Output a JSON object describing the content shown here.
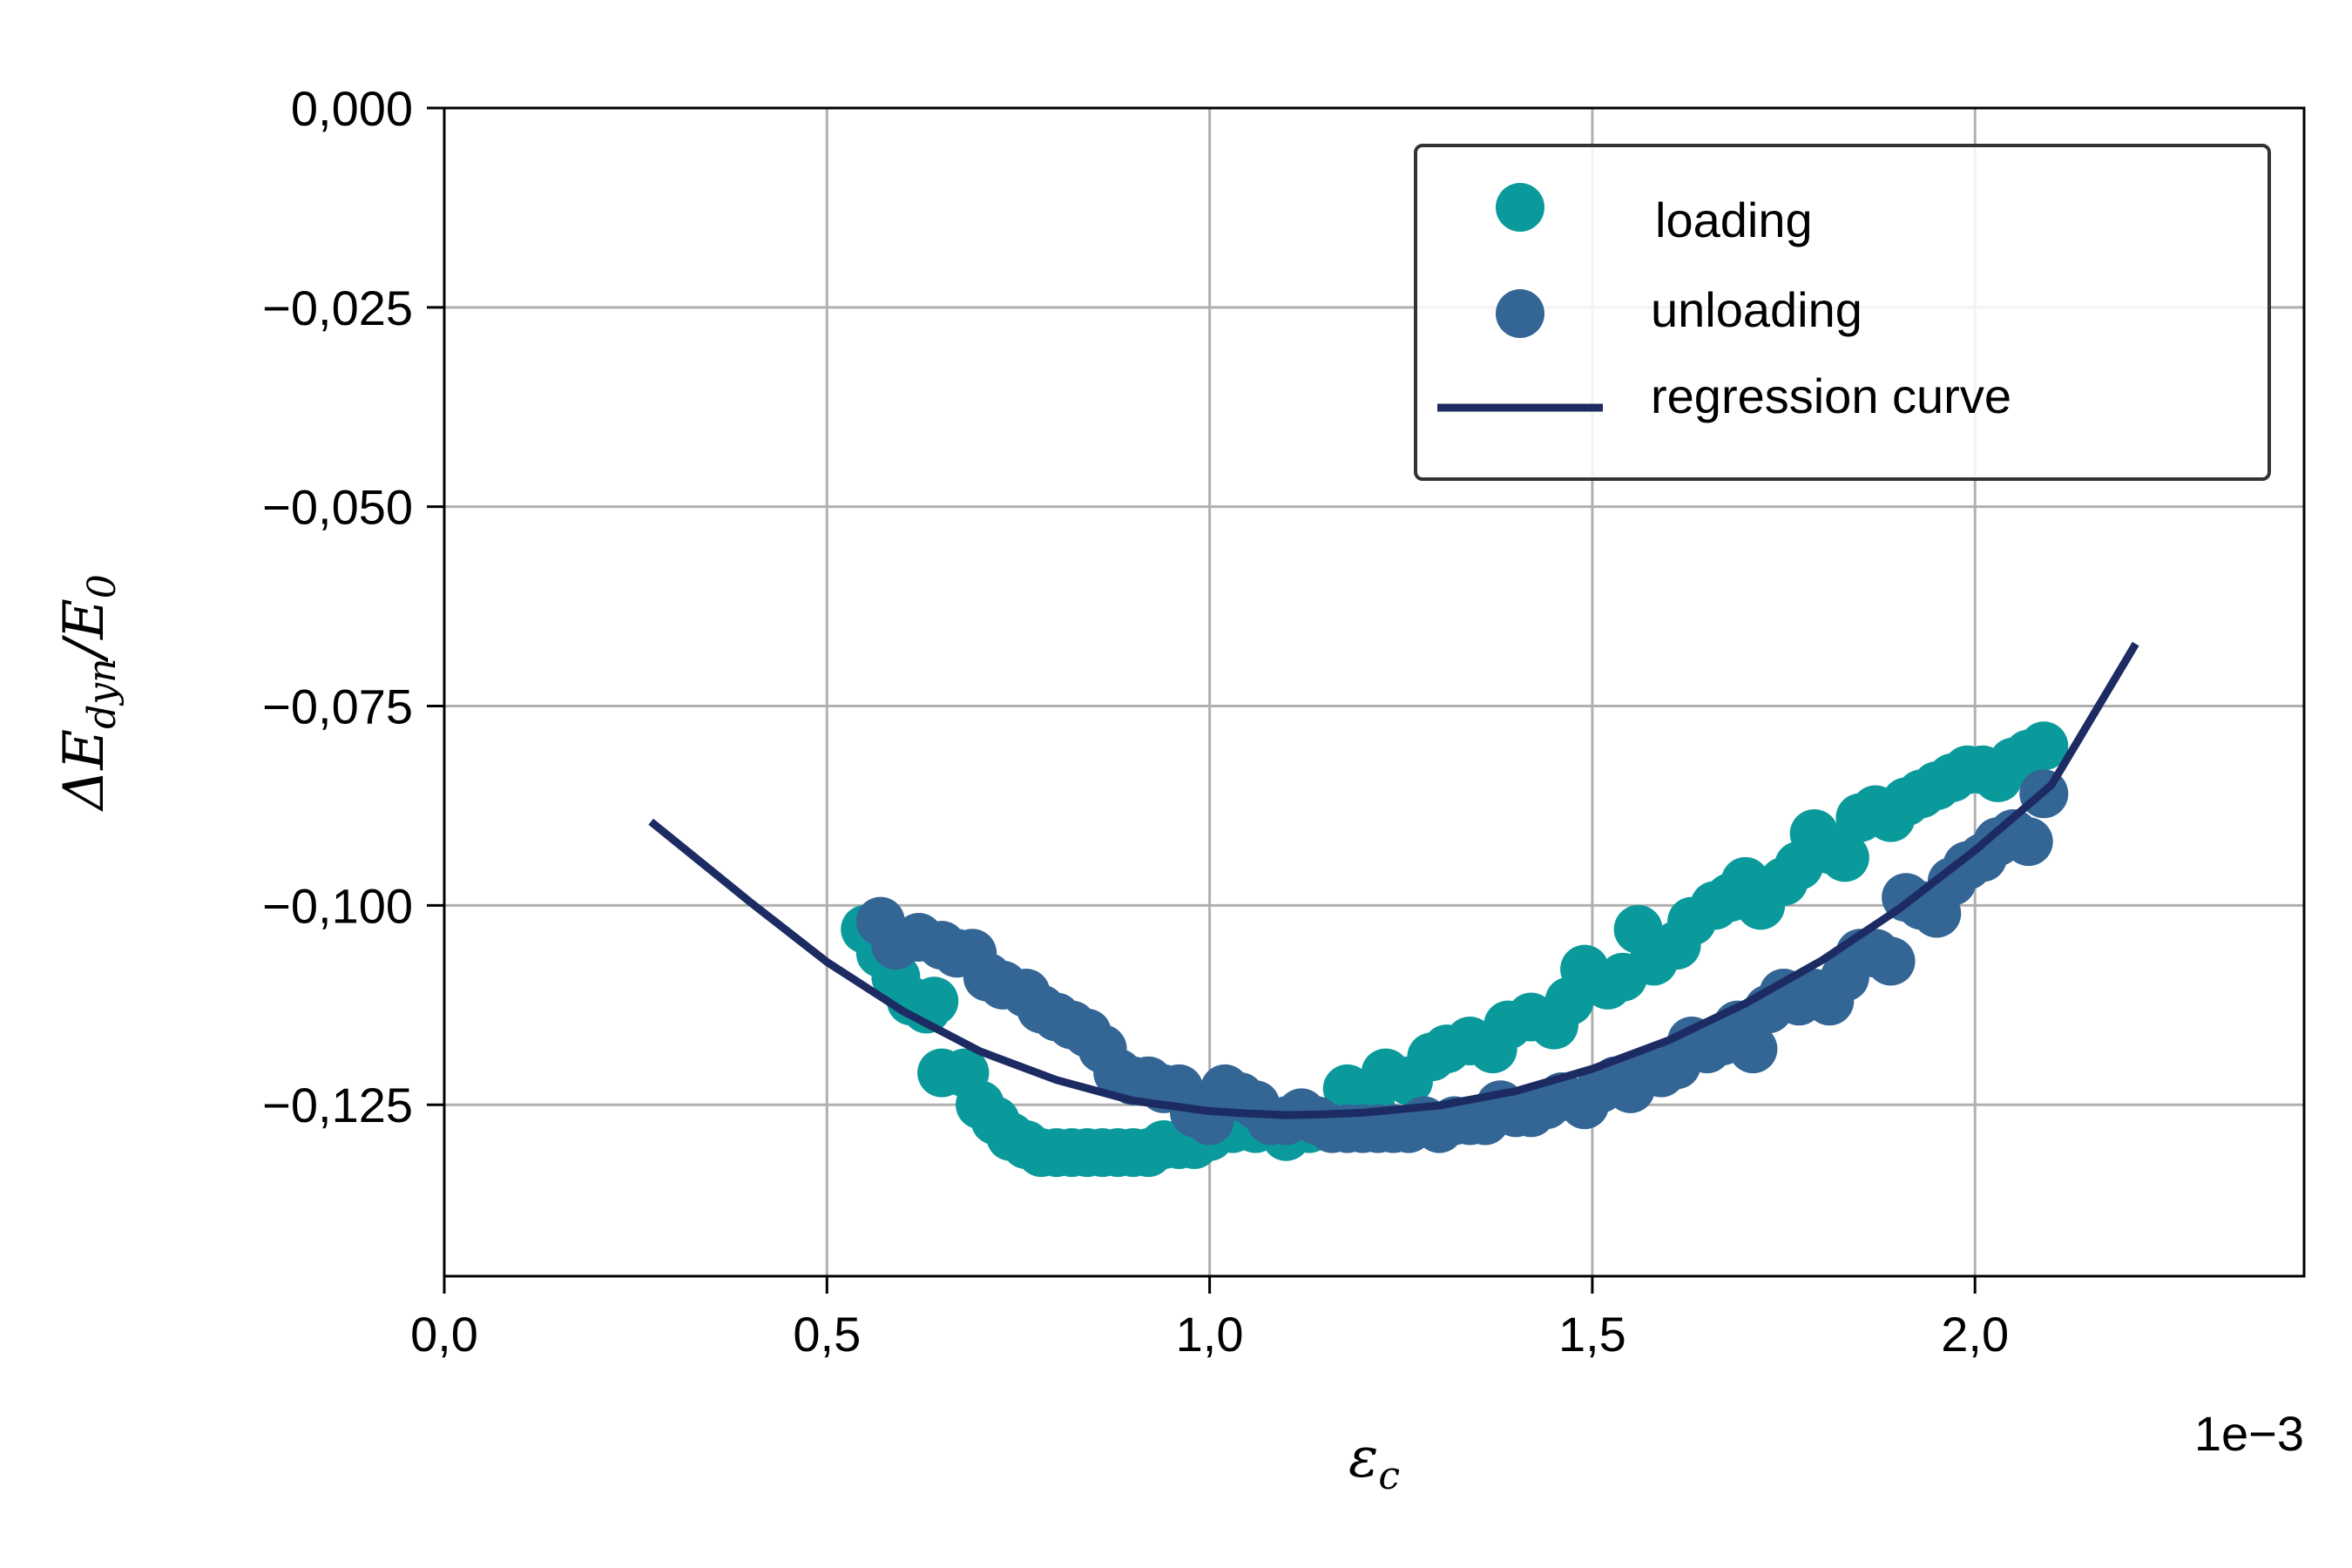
{
  "chart_data": {
    "type": "scatter",
    "xlabel": "ε",
    "xlabel_sub": "c",
    "ylabel_parts": [
      "ΔE",
      "dyn",
      "/E",
      "0"
    ],
    "x_offset_label": "1e−3",
    "xlim": [
      0.0,
      2.43
    ],
    "ylim": [
      -0.1465,
      0.0
    ],
    "x_ticks": [
      0.0,
      0.5,
      1.0,
      1.5,
      2.0
    ],
    "x_tick_labels": [
      "0,0",
      "0,5",
      "1,0",
      "1,5",
      "2,0"
    ],
    "y_ticks": [
      0.0,
      -0.025,
      -0.05,
      -0.075,
      -0.1,
      -0.125
    ],
    "y_tick_labels": [
      "0,000",
      "−0,025",
      "−0,050",
      "−0,075",
      "−0,100",
      "−0,125"
    ],
    "grid": true,
    "legend_position": "top-right",
    "colors": {
      "loading": "#0b9a9c",
      "unloading": "#336595",
      "regression": "#1d2b63",
      "grid": "#b0b0b0"
    },
    "series": [
      {
        "name": "loading",
        "kind": "scatter",
        "points": [
          [
            0.55,
            -0.103
          ],
          [
            0.57,
            -0.106
          ],
          [
            0.59,
            -0.109
          ],
          [
            0.61,
            -0.112
          ],
          [
            0.63,
            -0.113
          ],
          [
            0.64,
            -0.112
          ],
          [
            0.65,
            -0.121
          ],
          [
            0.68,
            -0.121
          ],
          [
            0.7,
            -0.125
          ],
          [
            0.72,
            -0.127
          ],
          [
            0.74,
            -0.129
          ],
          [
            0.76,
            -0.13
          ],
          [
            0.78,
            -0.131
          ],
          [
            0.8,
            -0.131
          ],
          [
            0.82,
            -0.131
          ],
          [
            0.84,
            -0.131
          ],
          [
            0.86,
            -0.131
          ],
          [
            0.88,
            -0.131
          ],
          [
            0.9,
            -0.131
          ],
          [
            0.92,
            -0.131
          ],
          [
            0.94,
            -0.13
          ],
          [
            0.96,
            -0.13
          ],
          [
            0.98,
            -0.13
          ],
          [
            1.0,
            -0.129
          ],
          [
            1.03,
            -0.128
          ],
          [
            1.06,
            -0.128
          ],
          [
            1.1,
            -0.129
          ],
          [
            1.13,
            -0.128
          ],
          [
            1.16,
            -0.127
          ],
          [
            1.18,
            -0.123
          ],
          [
            1.21,
            -0.125
          ],
          [
            1.23,
            -0.121
          ],
          [
            1.26,
            -0.122
          ],
          [
            1.29,
            -0.119
          ],
          [
            1.31,
            -0.118
          ],
          [
            1.34,
            -0.117
          ],
          [
            1.37,
            -0.118
          ],
          [
            1.39,
            -0.115
          ],
          [
            1.42,
            -0.114
          ],
          [
            1.45,
            -0.115
          ],
          [
            1.47,
            -0.112
          ],
          [
            1.49,
            -0.108
          ],
          [
            1.52,
            -0.11
          ],
          [
            1.54,
            -0.109
          ],
          [
            1.56,
            -0.103
          ],
          [
            1.58,
            -0.107
          ],
          [
            1.61,
            -0.105
          ],
          [
            1.63,
            -0.102
          ],
          [
            1.66,
            -0.1
          ],
          [
            1.68,
            -0.099
          ],
          [
            1.7,
            -0.097
          ],
          [
            1.72,
            -0.1
          ],
          [
            1.75,
            -0.097
          ],
          [
            1.77,
            -0.095
          ],
          [
            1.79,
            -0.091
          ],
          [
            1.81,
            -0.093
          ],
          [
            1.83,
            -0.094
          ],
          [
            1.85,
            -0.089
          ],
          [
            1.87,
            -0.088
          ],
          [
            1.89,
            -0.089
          ],
          [
            1.91,
            -0.087
          ],
          [
            1.93,
            -0.086
          ],
          [
            1.95,
            -0.085
          ],
          [
            1.97,
            -0.084
          ],
          [
            1.99,
            -0.083
          ],
          [
            2.01,
            -0.083
          ],
          [
            2.03,
            -0.084
          ],
          [
            2.05,
            -0.082
          ],
          [
            2.07,
            -0.081
          ],
          [
            2.09,
            -0.08
          ]
        ]
      },
      {
        "name": "unloading",
        "kind": "scatter",
        "points": [
          [
            0.57,
            -0.102
          ],
          [
            0.59,
            -0.105
          ],
          [
            0.62,
            -0.104
          ],
          [
            0.65,
            -0.105
          ],
          [
            0.67,
            -0.106
          ],
          [
            0.69,
            -0.106
          ],
          [
            0.71,
            -0.109
          ],
          [
            0.73,
            -0.11
          ],
          [
            0.76,
            -0.111
          ],
          [
            0.78,
            -0.113
          ],
          [
            0.8,
            -0.114
          ],
          [
            0.82,
            -0.115
          ],
          [
            0.84,
            -0.116
          ],
          [
            0.86,
            -0.118
          ],
          [
            0.88,
            -0.121
          ],
          [
            0.9,
            -0.122
          ],
          [
            0.92,
            -0.122
          ],
          [
            0.94,
            -0.123
          ],
          [
            0.96,
            -0.123
          ],
          [
            0.98,
            -0.126
          ],
          [
            1.0,
            -0.127
          ],
          [
            1.02,
            -0.123
          ],
          [
            1.04,
            -0.124
          ],
          [
            1.06,
            -0.125
          ],
          [
            1.08,
            -0.127
          ],
          [
            1.1,
            -0.127
          ],
          [
            1.12,
            -0.126
          ],
          [
            1.14,
            -0.127
          ],
          [
            1.16,
            -0.128
          ],
          [
            1.18,
            -0.128
          ],
          [
            1.2,
            -0.128
          ],
          [
            1.22,
            -0.128
          ],
          [
            1.24,
            -0.128
          ],
          [
            1.26,
            -0.128
          ],
          [
            1.28,
            -0.127
          ],
          [
            1.3,
            -0.128
          ],
          [
            1.32,
            -0.127
          ],
          [
            1.34,
            -0.127
          ],
          [
            1.36,
            -0.127
          ],
          [
            1.38,
            -0.125
          ],
          [
            1.4,
            -0.126
          ],
          [
            1.42,
            -0.126
          ],
          [
            1.44,
            -0.125
          ],
          [
            1.46,
            -0.124
          ],
          [
            1.49,
            -0.125
          ],
          [
            1.51,
            -0.123
          ],
          [
            1.53,
            -0.122
          ],
          [
            1.55,
            -0.123
          ],
          [
            1.57,
            -0.121
          ],
          [
            1.59,
            -0.121
          ],
          [
            1.61,
            -0.12
          ],
          [
            1.63,
            -0.117
          ],
          [
            1.65,
            -0.118
          ],
          [
            1.67,
            -0.117
          ],
          [
            1.69,
            -0.115
          ],
          [
            1.71,
            -0.118
          ],
          [
            1.73,
            -0.113
          ],
          [
            1.75,
            -0.111
          ],
          [
            1.77,
            -0.112
          ],
          [
            1.79,
            -0.111
          ],
          [
            1.81,
            -0.112
          ],
          [
            1.83,
            -0.109
          ],
          [
            1.85,
            -0.106
          ],
          [
            1.87,
            -0.106
          ],
          [
            1.89,
            -0.107
          ],
          [
            1.91,
            -0.099
          ],
          [
            1.93,
            -0.1
          ],
          [
            1.95,
            -0.101
          ],
          [
            1.97,
            -0.097
          ],
          [
            1.99,
            -0.095
          ],
          [
            2.01,
            -0.094
          ],
          [
            2.03,
            -0.092
          ],
          [
            2.05,
            -0.091
          ],
          [
            2.07,
            -0.092
          ],
          [
            2.09,
            -0.086
          ]
        ]
      },
      {
        "name": "regression curve",
        "kind": "line",
        "points": [
          [
            0.27,
            -0.0895
          ],
          [
            0.4,
            -0.0996
          ],
          [
            0.5,
            -0.1071
          ],
          [
            0.6,
            -0.1133
          ],
          [
            0.7,
            -0.1183
          ],
          [
            0.8,
            -0.1219
          ],
          [
            0.9,
            -0.1245
          ],
          [
            1.0,
            -0.1258
          ],
          [
            1.05,
            -0.1261
          ],
          [
            1.1,
            -0.1263
          ],
          [
            1.15,
            -0.1262
          ],
          [
            1.2,
            -0.126
          ],
          [
            1.3,
            -0.1251
          ],
          [
            1.4,
            -0.1233
          ],
          [
            1.5,
            -0.1205
          ],
          [
            1.6,
            -0.1169
          ],
          [
            1.7,
            -0.1123
          ],
          [
            1.8,
            -0.1069
          ],
          [
            1.9,
            -0.1005
          ],
          [
            2.0,
            -0.0931
          ],
          [
            2.1,
            -0.0849
          ],
          [
            2.21,
            -0.0672
          ]
        ]
      }
    ]
  }
}
